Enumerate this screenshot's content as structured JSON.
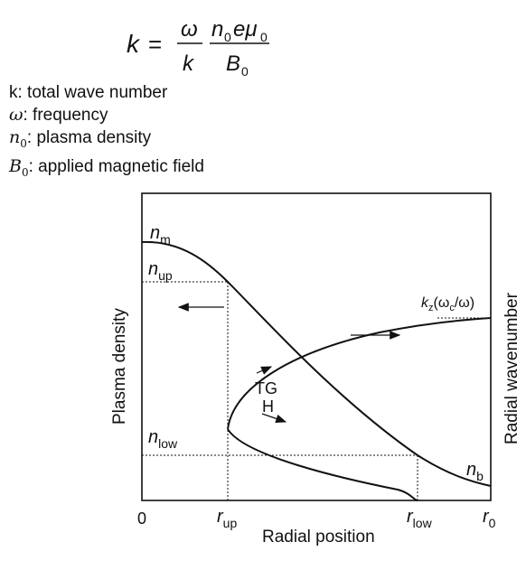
{
  "formula": {
    "lhs": "k",
    "equals": "=",
    "num1": "ω",
    "den1": "k",
    "num2_main": "n",
    "num2_sub": "0",
    "num2_rest": "eμ",
    "num2_sub2": "0",
    "den2_main": "B",
    "den2_sub": "0"
  },
  "definitions": [
    {
      "symbol": "k",
      "sub": "",
      "text": ": total wave number"
    },
    {
      "symbol": "ω",
      "sub": "",
      "text": ": frequency"
    },
    {
      "symbol": "n",
      "sub": "0",
      "text": ": plasma density"
    },
    {
      "symbol": "B",
      "sub": "0",
      "text": ": applied magnetic field"
    }
  ],
  "diagram": {
    "y_axis_label": "Plasma density",
    "x_axis_label": "Radial position",
    "right_axis_label": "Radial wavenumber",
    "x_ticks": {
      "origin": "0",
      "r_up": "r",
      "r_up_sub": "up",
      "r_low": "r",
      "r_low_sub": "low",
      "r0": "r",
      "r0_sub": "0"
    },
    "y_ticks": {
      "nm": "n",
      "nm_sub": "m",
      "nup": "n",
      "nup_sub": "up",
      "nlow": "n",
      "nlow_sub": "low"
    },
    "curve_labels": {
      "nb": "n",
      "nb_sub": "b",
      "tg": "TG",
      "h": "H",
      "kz": "k",
      "kz_sub": "z",
      "kz_rest": "(ω",
      "kz_sub2": "c",
      "kz_end": "/ω)"
    }
  }
}
